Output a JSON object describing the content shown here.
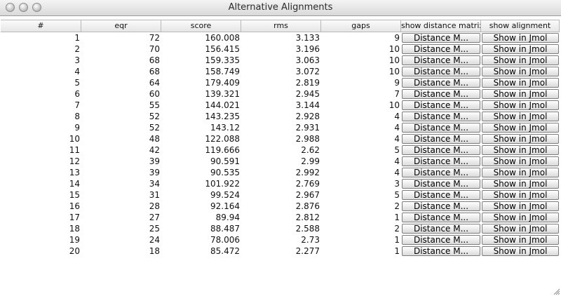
{
  "window": {
    "title": "Alternative Alignments"
  },
  "table": {
    "headers": [
      "#",
      "eqr",
      "score",
      "rms",
      "gaps",
      "show distance matrix",
      "show alignment"
    ],
    "rows": [
      [
        "1",
        "72",
        "160.008",
        "3.133",
        "9",
        "Distance M...",
        "Show in Jmol"
      ],
      [
        "2",
        "70",
        "156.415",
        "3.196",
        "10",
        "Distance M...",
        "Show in Jmol"
      ],
      [
        "3",
        "68",
        "159.335",
        "3.063",
        "10",
        "Distance M...",
        "Show in Jmol"
      ],
      [
        "4",
        "68",
        "158.749",
        "3.072",
        "10",
        "Distance M...",
        "Show in Jmol"
      ],
      [
        "5",
        "64",
        "179.409",
        "2.819",
        "9",
        "Distance M...",
        "Show in Jmol"
      ],
      [
        "6",
        "60",
        "139.321",
        "2.945",
        "7",
        "Distance M...",
        "Show in Jmol"
      ],
      [
        "7",
        "55",
        "144.021",
        "3.144",
        "10",
        "Distance M...",
        "Show in Jmol"
      ],
      [
        "8",
        "52",
        "143.235",
        "2.928",
        "4",
        "Distance M...",
        "Show in Jmol"
      ],
      [
        "9",
        "52",
        "143.12",
        "2.931",
        "4",
        "Distance M...",
        "Show in Jmol"
      ],
      [
        "10",
        "48",
        "122.088",
        "2.988",
        "4",
        "Distance M...",
        "Show in Jmol"
      ],
      [
        "11",
        "42",
        "119.666",
        "2.62",
        "5",
        "Distance M...",
        "Show in Jmol"
      ],
      [
        "12",
        "39",
        "90.591",
        "2.99",
        "4",
        "Distance M...",
        "Show in Jmol"
      ],
      [
        "13",
        "39",
        "90.535",
        "2.992",
        "4",
        "Distance M...",
        "Show in Jmol"
      ],
      [
        "14",
        "34",
        "101.922",
        "2.769",
        "3",
        "Distance M...",
        "Show in Jmol"
      ],
      [
        "15",
        "31",
        "99.524",
        "2.967",
        "5",
        "Distance M...",
        "Show in Jmol"
      ],
      [
        "16",
        "28",
        "92.164",
        "2.876",
        "2",
        "Distance M...",
        "Show in Jmol"
      ],
      [
        "17",
        "27",
        "89.94",
        "2.812",
        "1",
        "Distance M...",
        "Show in Jmol"
      ],
      [
        "18",
        "25",
        "88.487",
        "2.588",
        "2",
        "Distance M...",
        "Show in Jmol"
      ],
      [
        "19",
        "24",
        "78.006",
        "2.73",
        "1",
        "Distance M...",
        "Show in Jmol"
      ],
      [
        "20",
        "18",
        "85.472",
        "2.277",
        "1",
        "Distance M...",
        "Show in Jmol"
      ]
    ]
  }
}
